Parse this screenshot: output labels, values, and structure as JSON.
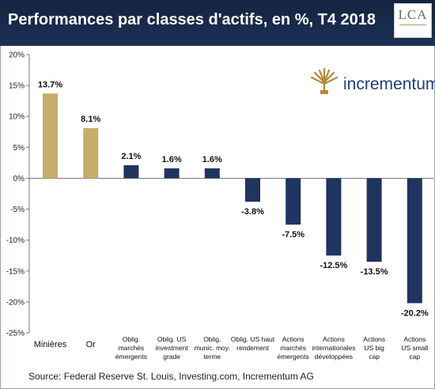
{
  "header": {
    "title": "Performances par classes d'actifs, en %, T4 2018",
    "logo_text": "LCA"
  },
  "brand": {
    "name": "incrementum",
    "color": "#1f3f7a",
    "icon": "tree-icon"
  },
  "source": "Source: Federal Reserve St. Louis, Investing.com, Incrementum AG",
  "colors": {
    "gold": "#c8ac6a",
    "navy": "#1f3460",
    "header": "#17284a"
  },
  "chart_data": {
    "type": "bar",
    "title": "Performances par classes d'actifs, en %, T4 2018",
    "xlabel": "",
    "ylabel": "",
    "ylim": [
      -25,
      20
    ],
    "yticks": [
      "20%",
      "15%",
      "10%",
      "5%",
      "0%",
      "-5%",
      "-10%",
      "-15%",
      "-20%",
      "-25%"
    ],
    "grid": false,
    "legend": "none",
    "categories": [
      [
        "Minières"
      ],
      [
        "Or"
      ],
      [
        "Oblig.",
        "marchés",
        "émergents"
      ],
      [
        "Oblig. US",
        "investment",
        "grade"
      ],
      [
        "Oblig.",
        "munic. moy.",
        "terme"
      ],
      [
        "Oblig. US haut",
        "rendement"
      ],
      [
        "Actions",
        "marchés",
        "émergents"
      ],
      [
        "Actions",
        "internationales",
        "développées"
      ],
      [
        "Actions",
        "US big",
        "cap"
      ],
      [
        "Actions",
        "US small",
        "cap"
      ]
    ],
    "values": [
      13.7,
      8.1,
      2.1,
      1.6,
      1.6,
      -3.8,
      -7.5,
      -12.5,
      -13.5,
      -20.2
    ],
    "labels": [
      "13.7%",
      "8.1%",
      "2.1%",
      "1.6%",
      "1.6%",
      "-3.8%",
      "-7.5%",
      "-12.5%",
      "-13.5%",
      "-20.2%"
    ],
    "bar_colors": [
      "gold",
      "gold",
      "navy",
      "navy",
      "navy",
      "navy",
      "navy",
      "navy",
      "navy",
      "navy"
    ]
  }
}
